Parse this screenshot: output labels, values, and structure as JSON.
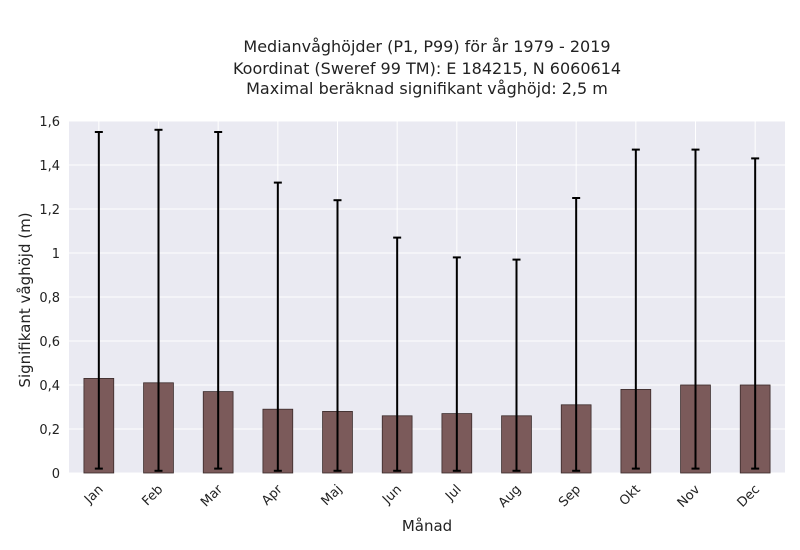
{
  "chart_data": {
    "type": "bar",
    "title_lines": [
      "Medianvåghöjder (P1, P99) för år 1979 - 2019",
      "Koordinat (Sweref 99 TM): E 184215, N 6060614",
      "Maximal beräknad signifikant våghöjd: 2,5 m"
    ],
    "xlabel": "Månad",
    "ylabel": "Signifikant våghöjd (m)",
    "categories": [
      "Jan",
      "Feb",
      "Mar",
      "Apr",
      "Maj",
      "Jun",
      "Jul",
      "Aug",
      "Sep",
      "Okt",
      "Nov",
      "Dec"
    ],
    "values": [
      0.43,
      0.41,
      0.37,
      0.29,
      0.28,
      0.26,
      0.27,
      0.26,
      0.31,
      0.38,
      0.4,
      0.4
    ],
    "error_low": [
      0.02,
      0.01,
      0.02,
      0.01,
      0.01,
      0.01,
      0.01,
      0.01,
      0.01,
      0.02,
      0.02,
      0.02
    ],
    "error_high": [
      1.55,
      1.56,
      1.55,
      1.32,
      1.24,
      1.07,
      0.98,
      0.97,
      1.25,
      1.47,
      1.47,
      1.43
    ],
    "ylim": [
      0,
      1.6
    ],
    "yticks": [
      0,
      0.2,
      0.4,
      0.6,
      0.8,
      1,
      1.2,
      1.4,
      1.6
    ],
    "ytick_labels": [
      "0",
      "0,2",
      "0,4",
      "0,6",
      "0,8",
      "1",
      "1,2",
      "1,4",
      "1,6"
    ],
    "grid": true,
    "colors": {
      "bar": "#7b5a5a",
      "bar_edge": "#3a2a2a",
      "error": "#000000",
      "plot_bg": "#eaeaf2",
      "grid": "#ffffff"
    }
  }
}
